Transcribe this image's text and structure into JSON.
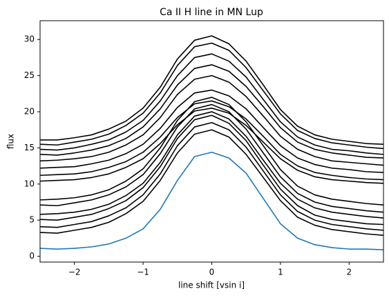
{
  "chart_data": {
    "type": "line",
    "title": "Ca II H line in MN Lup",
    "x_label": "line shift [vsin i]",
    "y_label": "flux",
    "x": [
      -2.5,
      -2.25,
      -2,
      -1.75,
      -1.5,
      -1.25,
      -1,
      -0.75,
      -0.5,
      -0.25,
      0,
      0.25,
      0.5,
      0.75,
      1,
      1.25,
      1.5,
      1.75,
      2,
      2.25,
      2.5
    ],
    "xlim": [
      -2.5,
      2.5
    ],
    "xticks": [
      {
        "value": -2,
        "label": "−2"
      },
      {
        "value": -1,
        "label": "−1"
      },
      0,
      1,
      2
    ],
    "ylim": [
      -0.8,
      32.6
    ],
    "yticks": [
      0,
      5,
      10,
      15,
      20,
      25,
      30
    ],
    "grid": false,
    "series": [
      {
        "color": "#000000",
        "values": [
          16.1,
          16.1,
          16.4,
          16.8,
          17.6,
          18.7,
          20.5,
          23.4,
          27.3,
          29.9,
          30.5,
          29.4,
          27.0,
          23.7,
          20.3,
          18.0,
          16.8,
          16.2,
          15.9,
          15.6,
          15.5
        ]
      },
      {
        "color": "#000000",
        "values": [
          15.5,
          15.4,
          15.8,
          16.2,
          16.9,
          18.1,
          19.8,
          22.6,
          26.4,
          29.0,
          29.5,
          28.5,
          26.1,
          22.9,
          19.7,
          17.4,
          16.3,
          15.7,
          15.4,
          15.1,
          14.9
        ]
      },
      {
        "color": "#000000",
        "values": [
          14.8,
          14.7,
          15.0,
          15.5,
          16.1,
          17.2,
          18.8,
          21.5,
          25.0,
          27.5,
          28.0,
          27.0,
          24.8,
          21.7,
          18.6,
          16.5,
          15.4,
          14.8,
          14.6,
          14.3,
          14.1
        ]
      },
      {
        "color": "#000000",
        "values": [
          14.1,
          14.0,
          14.3,
          14.7,
          15.3,
          16.3,
          17.9,
          20.4,
          23.7,
          26.0,
          26.5,
          25.6,
          23.5,
          20.7,
          17.8,
          15.8,
          14.8,
          14.3,
          14.0,
          13.7,
          13.6
        ]
      },
      {
        "color": "#000000",
        "values": [
          13.2,
          13.3,
          13.5,
          13.8,
          14.4,
          15.4,
          16.8,
          19.2,
          22.4,
          24.5,
          25.0,
          24.1,
          22.1,
          19.4,
          16.6,
          14.8,
          13.8,
          13.2,
          13.0,
          12.8,
          12.6
        ]
      },
      {
        "color": "#000000",
        "values": [
          12.2,
          12.3,
          12.4,
          12.8,
          13.3,
          14.2,
          15.5,
          17.7,
          20.6,
          22.6,
          23.0,
          22.2,
          20.4,
          17.8,
          15.3,
          13.6,
          12.7,
          12.2,
          12.0,
          11.7,
          11.6
        ]
      },
      {
        "color": "#000000",
        "values": [
          11.2,
          11.3,
          11.4,
          11.7,
          12.3,
          13.1,
          14.4,
          16.5,
          19.2,
          21.1,
          21.5,
          20.7,
          19.0,
          16.6,
          14.1,
          12.5,
          11.6,
          11.2,
          10.9,
          10.7,
          10.6
        ]
      },
      {
        "color": "#000000",
        "values": [
          10.4,
          10.5,
          10.6,
          10.9,
          11.4,
          12.3,
          13.5,
          15.6,
          18.2,
          20.1,
          20.5,
          19.8,
          18.1,
          15.8,
          13.5,
          11.9,
          11.0,
          10.6,
          10.4,
          10.2,
          10.1
        ]
      },
      {
        "color": "#000000",
        "values": [
          7.8,
          7.9,
          8.1,
          8.5,
          9.2,
          10.4,
          12.1,
          15.0,
          18.8,
          21.4,
          22.0,
          21.0,
          18.6,
          15.3,
          12.0,
          9.7,
          8.5,
          7.9,
          7.6,
          7.3,
          7.1
        ]
      },
      {
        "color": "#000000",
        "values": [
          7.1,
          7.0,
          7.4,
          7.8,
          8.5,
          9.6,
          11.3,
          14.2,
          17.9,
          20.4,
          21.0,
          20.0,
          17.6,
          14.3,
          11.0,
          8.7,
          7.5,
          6.9,
          6.6,
          6.3,
          6.1
        ]
      },
      {
        "color": "#000000",
        "values": [
          5.8,
          5.9,
          6.1,
          6.5,
          7.2,
          8.4,
          10.1,
          13.0,
          16.8,
          19.4,
          20.0,
          19.0,
          16.6,
          13.3,
          10.1,
          7.9,
          6.7,
          6.1,
          5.8,
          5.5,
          5.3
        ]
      },
      {
        "color": "#000000",
        "values": [
          5.1,
          5.0,
          5.4,
          5.8,
          6.6,
          7.7,
          9.5,
          12.4,
          16.3,
          18.9,
          19.5,
          18.4,
          16.0,
          12.6,
          9.3,
          7.0,
          5.7,
          5.1,
          4.8,
          4.5,
          4.4
        ]
      },
      {
        "color": "#000000",
        "values": [
          4.1,
          4.0,
          4.4,
          4.8,
          5.6,
          6.7,
          8.5,
          11.4,
          15.3,
          17.9,
          18.5,
          17.5,
          15.1,
          11.8,
          8.5,
          6.2,
          5.0,
          4.4,
          4.1,
          3.8,
          3.6
        ]
      },
      {
        "color": "#000000",
        "values": [
          3.3,
          3.2,
          3.6,
          4.0,
          4.7,
          5.9,
          7.6,
          10.5,
          14.3,
          16.9,
          17.5,
          16.5,
          14.1,
          10.9,
          7.7,
          5.4,
          4.3,
          3.7,
          3.4,
          3.1,
          2.9
        ]
      },
      {
        "color": "#1f77b4",
        "values": [
          1.1,
          1.0,
          1.1,
          1.3,
          1.7,
          2.5,
          3.8,
          6.5,
          10.5,
          13.8,
          14.4,
          13.6,
          11.5,
          8.0,
          4.5,
          2.5,
          1.6,
          1.2,
          1.0,
          1.0,
          0.9
        ]
      }
    ]
  }
}
